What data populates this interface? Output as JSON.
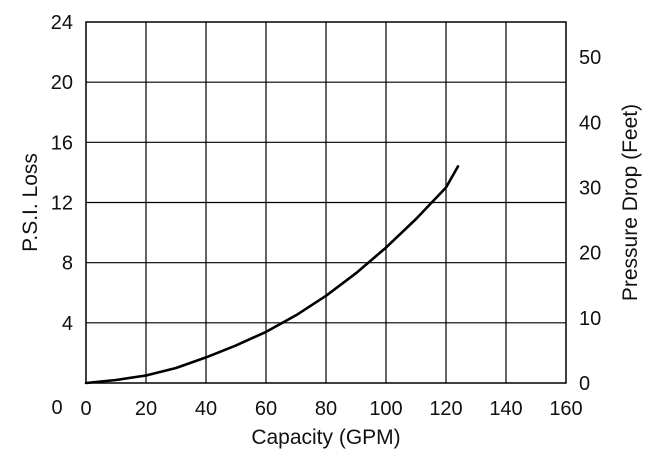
{
  "chart_data": {
    "type": "line",
    "title": "",
    "xlabel": "Capacity (GPM)",
    "ylabel": "P.S.I. Loss",
    "y2label": "Pressure Drop (Feet)",
    "xlim": [
      0,
      160
    ],
    "ylim": [
      0,
      24
    ],
    "y2lim": [
      0,
      55.4
    ],
    "grid": true,
    "legend": "none",
    "x_ticks": [
      {
        "value": 0,
        "label": "0"
      },
      {
        "value": 20,
        "label": "20"
      },
      {
        "value": 40,
        "label": "40"
      },
      {
        "value": 60,
        "label": "60"
      },
      {
        "value": 80,
        "label": "80"
      },
      {
        "value": 100,
        "label": "100"
      },
      {
        "value": 120,
        "label": "120"
      },
      {
        "value": 140,
        "label": "140"
      },
      {
        "value": 160,
        "label": "160"
      }
    ],
    "y_ticks": [
      {
        "value": 4,
        "label": "4"
      },
      {
        "value": 8,
        "label": "8"
      },
      {
        "value": 12,
        "label": "12"
      },
      {
        "value": 16,
        "label": "16"
      },
      {
        "value": 20,
        "label": "20"
      },
      {
        "value": 24,
        "label": "24"
      }
    ],
    "y2_ticks": [
      {
        "value": 0,
        "label": "0"
      },
      {
        "value": 10,
        "label": "10"
      },
      {
        "value": 20,
        "label": "20"
      },
      {
        "value": 30,
        "label": "30"
      },
      {
        "value": 40,
        "label": "40"
      },
      {
        "value": 50,
        "label": "50"
      }
    ],
    "series": [
      {
        "color": "#000000",
        "x": [
          0,
          10,
          20,
          30,
          40,
          50,
          60,
          70,
          80,
          90,
          100,
          110,
          120,
          124
        ],
        "y": [
          0,
          0.2,
          0.5,
          1.0,
          1.7,
          2.5,
          3.4,
          4.5,
          5.8,
          7.3,
          9.0,
          10.9,
          13.0,
          14.4
        ]
      }
    ]
  }
}
